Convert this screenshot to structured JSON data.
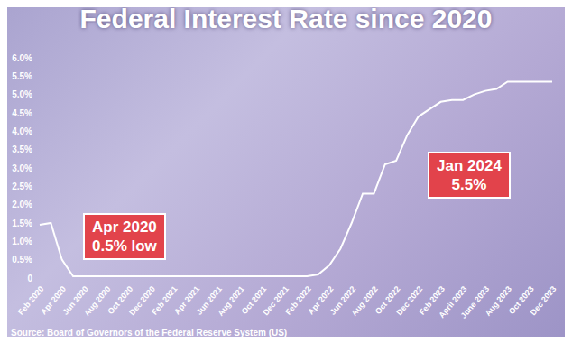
{
  "chart_data": {
    "type": "line",
    "title": "Federal Interest Rate since 2020",
    "source": "Source: Board of Governors of the Federal Reserve System (US)",
    "categories": [
      "Feb 2020",
      null,
      "Apr 2020",
      null,
      "Jun 2020",
      null,
      "Aug 2020",
      null,
      "Oct 2020",
      null,
      "Dec 2020",
      null,
      "Feb 2021",
      null,
      "Apr 2021",
      null,
      "Jun 2021",
      null,
      "Aug 2021",
      null,
      "Oct 2021",
      null,
      "Dec 2021",
      null,
      "Feb 2022",
      null,
      "Apr 2022",
      null,
      "Jun 2022",
      null,
      "Aug 2022",
      null,
      "Oct 2022",
      null,
      "Dec 2022",
      null,
      "Feb 2023",
      null,
      "April 2023",
      null,
      "June 2023",
      null,
      "Aug 2023",
      null,
      "Oct 2023",
      null,
      "Dec 2023"
    ],
    "values": [
      1.45,
      1.5,
      0.5,
      0.05,
      0.05,
      0.05,
      0.05,
      0.05,
      0.05,
      0.05,
      0.05,
      0.05,
      0.05,
      0.05,
      0.05,
      0.05,
      0.05,
      0.05,
      0.05,
      0.05,
      0.05,
      0.05,
      0.05,
      0.05,
      0.05,
      0.1,
      0.35,
      0.8,
      1.5,
      2.3,
      2.3,
      3.1,
      3.2,
      3.9,
      4.4,
      4.6,
      4.8,
      4.85,
      4.85,
      5.0,
      5.1,
      5.15,
      5.35,
      5.35,
      5.35,
      5.35,
      5.35
    ],
    "color": "#ffffff",
    "ylim": [
      0,
      6
    ],
    "yticks": [
      0,
      {
        "value": 0.5,
        "label": "0.5%"
      },
      {
        "value": 1,
        "label": "1.0%"
      },
      {
        "value": 1.5,
        "label": "1.5%"
      },
      {
        "value": 2,
        "label": "2.0%"
      },
      {
        "value": 2.5,
        "label": "2.5%"
      },
      {
        "value": 3,
        "label": "3.0%"
      },
      {
        "value": 3.5,
        "label": "3.5%"
      },
      {
        "value": 4,
        "label": "4.0%"
      },
      {
        "value": 4.5,
        "label": "4.5%"
      },
      {
        "value": 5,
        "label": "5.0%"
      },
      {
        "value": 5.5,
        "label": "5.5%"
      },
      {
        "value": 6,
        "label": "6.0%"
      }
    ],
    "grid": false,
    "annotations": [
      {
        "label": "Apr 2020",
        "text": "0.5% low"
      },
      {
        "label": "Jan 2024",
        "text": "5.5%"
      }
    ]
  }
}
